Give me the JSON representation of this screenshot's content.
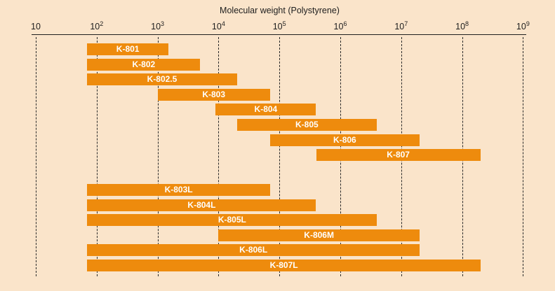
{
  "chart_data": {
    "type": "bar",
    "orientation": "horizontal-range",
    "title": "",
    "xlabel": "Molecular weight (Polystyrene)",
    "ylabel": "",
    "x_scale": "log10",
    "xlim": [
      10,
      1000000000
    ],
    "grid": "vertical-dashed",
    "legend": "none",
    "ticks": [
      {
        "label": "10",
        "exponent": 1
      },
      {
        "label": "10²",
        "exponent": 2
      },
      {
        "label": "10³",
        "exponent": 3
      },
      {
        "label": "10⁴",
        "exponent": 4
      },
      {
        "label": "10⁵",
        "exponent": 5
      },
      {
        "label": "10⁶",
        "exponent": 6
      },
      {
        "label": "10⁷",
        "exponent": 7
      },
      {
        "label": "10⁸",
        "exponent": 8
      },
      {
        "label": "10⁹",
        "exponent": 9
      }
    ],
    "bars": [
      {
        "label": "K-801",
        "min": 70,
        "max": 1500,
        "group": 1
      },
      {
        "label": "K-802",
        "min": 70,
        "max": 5000,
        "group": 1
      },
      {
        "label": "K-802.5",
        "min": 70,
        "max": 20000,
        "group": 1
      },
      {
        "label": "K-803",
        "min": 1000,
        "max": 70000,
        "group": 1
      },
      {
        "label": "K-804",
        "min": 9000,
        "max": 400000,
        "group": 1
      },
      {
        "label": "K-805",
        "min": 20000,
        "max": 4000000,
        "group": 1
      },
      {
        "label": "K-806",
        "min": 70000,
        "max": 20000000,
        "group": 1
      },
      {
        "label": "K-807",
        "min": 400000,
        "max": 200000000,
        "group": 1
      },
      {
        "label": "K-803L",
        "min": 70,
        "max": 70000,
        "group": 2
      },
      {
        "label": "K-804L",
        "min": 70,
        "max": 400000,
        "group": 2
      },
      {
        "label": "K-805L",
        "min": 70,
        "max": 4000000,
        "group": 2
      },
      {
        "label": "K-806M",
        "min": 10000,
        "max": 20000000,
        "group": 2
      },
      {
        "label": "K-806L",
        "min": 70,
        "max": 20000000,
        "group": 2
      },
      {
        "label": "K-807L",
        "min": 70,
        "max": 200000000,
        "group": 2
      }
    ]
  },
  "colors": {
    "background": "#fae4ca",
    "bar": "#ee8b0d",
    "bar_label": "#ffffff",
    "axis": "#1e1e1e"
  }
}
